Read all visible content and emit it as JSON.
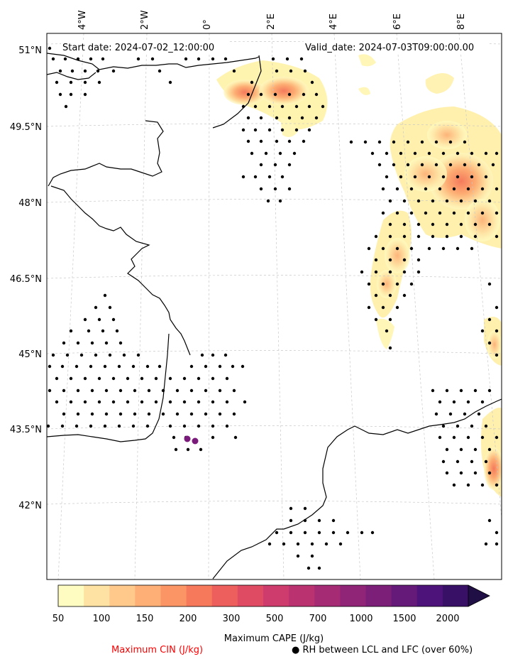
{
  "header": {
    "start_date": "Start date: 2024-07-02_12:00:00",
    "valid_date": "Valid_date: 2024-07-03T09:00:00.00"
  },
  "lon_ticks": [
    "4°W",
    "2°W",
    "0°",
    "2°E",
    "4°E",
    "6°E",
    "8°E"
  ],
  "lat_ticks": [
    "51°N",
    "49.5°N",
    "48°N",
    "46.5°N",
    "45°N",
    "43.5°N",
    "42°N"
  ],
  "colorbar": {
    "ticks": [
      "50",
      "100",
      "150",
      "200",
      "300",
      "500",
      "700",
      "1000",
      "1500",
      "2000"
    ],
    "colors": [
      "#fffcc1",
      "#fee2a3",
      "#fec98b",
      "#fdaf75",
      "#fc9565",
      "#f7795c",
      "#ec5f5c",
      "#de4b63",
      "#cd3c6c",
      "#ba3270",
      "#a52b74",
      "#902577",
      "#7c1f78",
      "#651a7a",
      "#4e137a",
      "#381167",
      "#1f0f44"
    ],
    "label": "Maximum CAPE (J/kg)"
  },
  "legend": {
    "cin_label": "Maximum CIN (J/kg)",
    "cin_color": "#ff0000",
    "rh_label": "● RH between LCL and LFC (over 60%)"
  },
  "colors": {
    "coast": "#000000",
    "grid": "#c8c8c8",
    "dots": "#000000",
    "cin_dots": "#7a1a7a"
  }
}
